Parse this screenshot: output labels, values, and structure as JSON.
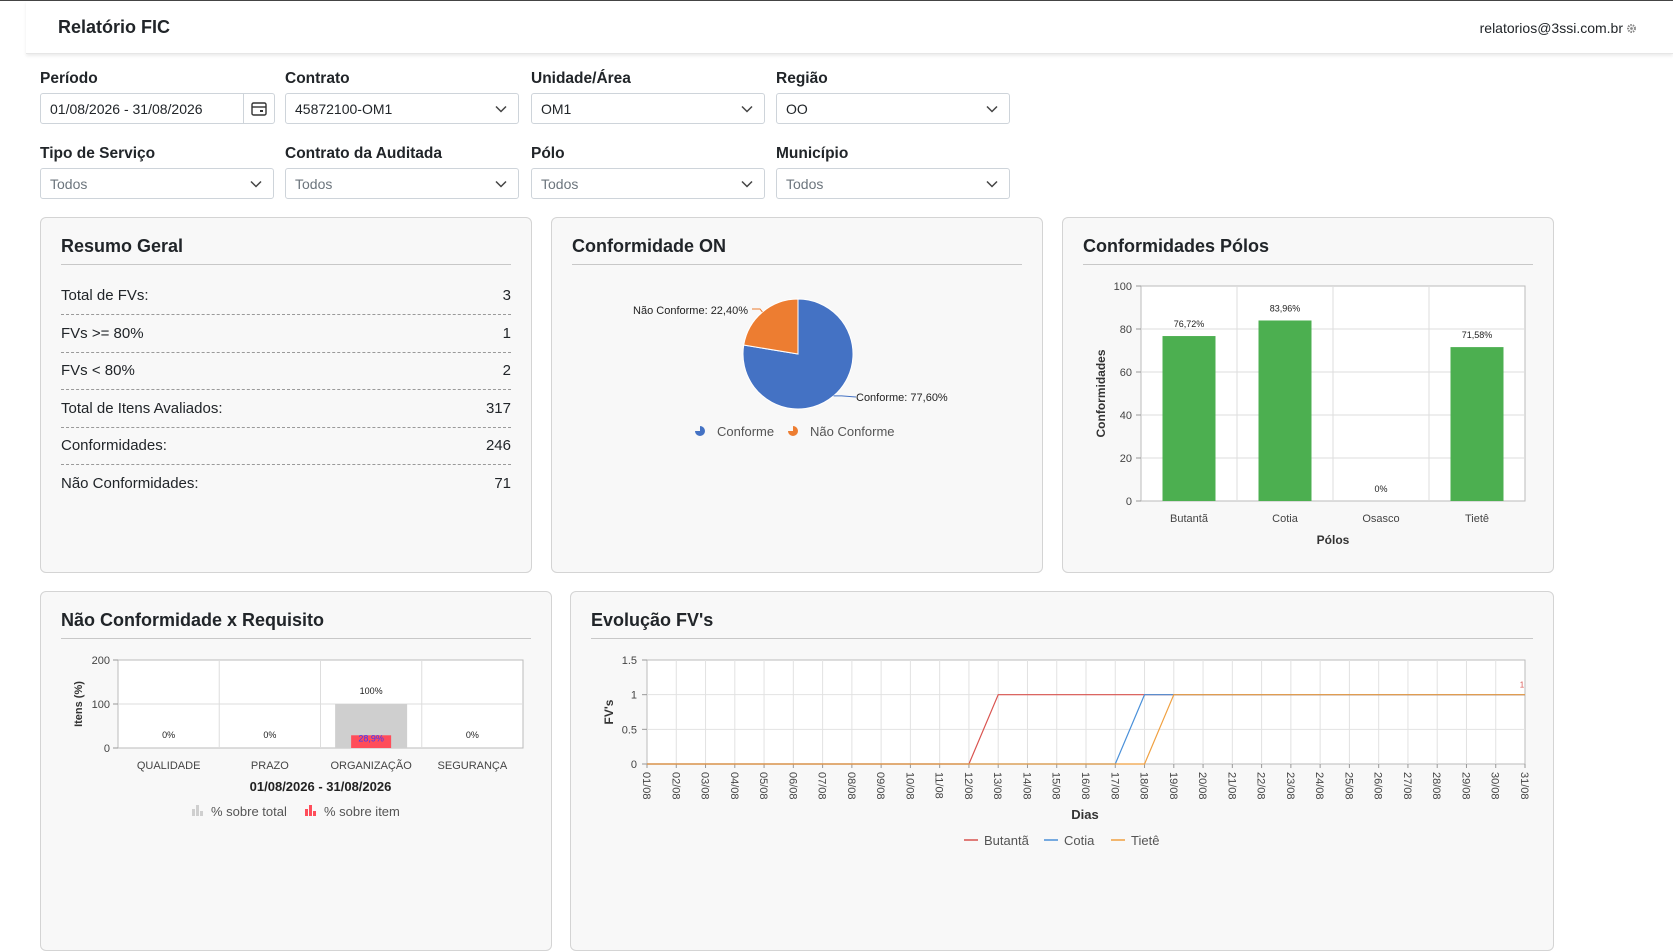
{
  "header": {
    "title": "Relatório FIC",
    "user_email": "relatorios@3ssi.com.br"
  },
  "filters": {
    "periodo": {
      "label": "Período",
      "value": "01/08/2026 - 31/08/2026"
    },
    "contrato": {
      "label": "Contrato",
      "value": "45872100-OM1"
    },
    "unidade": {
      "label": "Unidade/Área",
      "value": "OM1"
    },
    "regiao": {
      "label": "Região",
      "value": "OO"
    },
    "tipo_servico": {
      "label": "Tipo de Serviço",
      "value": "Todos"
    },
    "contrato_auditada": {
      "label": "Contrato da Auditada",
      "value": "Todos"
    },
    "polo": {
      "label": "Pólo",
      "value": "Todos"
    },
    "municipio": {
      "label": "Município",
      "value": "Todos"
    }
  },
  "resumo": {
    "title": "Resumo Geral",
    "rows": [
      {
        "label": "Total de FVs:",
        "value": "3"
      },
      {
        "label": "FVs >= 80%",
        "value": "1"
      },
      {
        "label": "FVs < 80%",
        "value": "2"
      },
      {
        "label": "Total de Itens Avaliados:",
        "value": "317"
      },
      {
        "label": "Conformidades:",
        "value": "246"
      },
      {
        "label": "Não Conformidades:",
        "value": "71"
      }
    ]
  },
  "colors": {
    "pie_conforme": "#4472c4",
    "pie_nao_conforme": "#ed7d31",
    "bar_green": "#4caf50",
    "bar_total": "#cfcfcf",
    "bar_item": "#ff4d5a",
    "line_butanta": "#d9534f",
    "line_cotia": "#4a90d9",
    "line_tiete": "#f0a040"
  },
  "chart_data": [
    {
      "id": "conformidade_on",
      "type": "pie",
      "title": "Conformidade ON",
      "slices": [
        {
          "name": "Conforme",
          "value": 77.6,
          "label": "Conforme: 77,60%"
        },
        {
          "name": "Não Conforme",
          "value": 22.4,
          "label": "Não Conforme: 22,40%"
        }
      ],
      "legend": "bottom"
    },
    {
      "id": "conformidades_polos",
      "type": "bar",
      "title": "Conformidades Pólos",
      "categories": [
        "Butantã",
        "Cotia",
        "Osasco",
        "Tietê"
      ],
      "values": [
        76.72,
        83.96,
        0,
        71.58
      ],
      "data_labels": [
        "76,72%",
        "83,96%",
        "0%",
        "71,58%"
      ],
      "xlabel": "Pólos",
      "ylabel": "Conformidades",
      "ylim": [
        0,
        100
      ],
      "yticks": [
        "0",
        "20",
        "40",
        "60",
        "80",
        "100"
      ],
      "grid": true
    },
    {
      "id": "nao_conformidade_requisito",
      "type": "bar",
      "title": "Não Conformidade x Requisito",
      "categories": [
        "QUALIDADE",
        "PRAZO",
        "ORGANIZAÇÃO",
        "SEGURANÇA"
      ],
      "series": [
        {
          "name": "% sobre total",
          "values": [
            0,
            0,
            100,
            0
          ],
          "data_labels": [
            "",
            "",
            "100%",
            ""
          ]
        },
        {
          "name": "% sobre item",
          "values": [
            0,
            0,
            28.9,
            0
          ],
          "data_labels": [
            "0%",
            "0%",
            "28,9%",
            "0%"
          ]
        }
      ],
      "xlabel": "01/08/2026 - 31/08/2026",
      "ylabel": "Itens (%)",
      "ylim": [
        0,
        200
      ],
      "yticks": [
        "0",
        "100",
        "200"
      ],
      "legend": "bottom",
      "grid": true
    },
    {
      "id": "evolucao_fvs",
      "type": "line",
      "title": "Evolução FV's",
      "x": [
        "01/08",
        "02/08",
        "03/08",
        "04/08",
        "05/08",
        "06/08",
        "07/08",
        "08/08",
        "09/08",
        "10/08",
        "11/08",
        "12/08",
        "13/08",
        "14/08",
        "15/08",
        "16/08",
        "17/08",
        "18/08",
        "19/08",
        "20/08",
        "21/08",
        "22/08",
        "23/08",
        "24/08",
        "25/08",
        "26/08",
        "27/08",
        "28/08",
        "29/08",
        "30/08",
        "31/08"
      ],
      "series": [
        {
          "name": "Butantã",
          "values": [
            0,
            0,
            0,
            0,
            0,
            0,
            0,
            0,
            0,
            0,
            0,
            0,
            1,
            1,
            1,
            1,
            1,
            1,
            1,
            1,
            1,
            1,
            1,
            1,
            1,
            1,
            1,
            1,
            1,
            1,
            1
          ]
        },
        {
          "name": "Cotia",
          "values": [
            0,
            0,
            0,
            0,
            0,
            0,
            0,
            0,
            0,
            0,
            0,
            0,
            0,
            0,
            0,
            0,
            0,
            1,
            1,
            1,
            1,
            1,
            1,
            1,
            1,
            1,
            1,
            1,
            1,
            1,
            1
          ]
        },
        {
          "name": "Tietê",
          "values": [
            0,
            0,
            0,
            0,
            0,
            0,
            0,
            0,
            0,
            0,
            0,
            0,
            0,
            0,
            0,
            0,
            0,
            0,
            1,
            1,
            1,
            1,
            1,
            1,
            1,
            1,
            1,
            1,
            1,
            1,
            1
          ]
        }
      ],
      "end_label": "1",
      "xlabel": "Dias",
      "ylabel": "FV's",
      "ylim": [
        0,
        1.5
      ],
      "yticks": [
        "0",
        "0.5",
        "1",
        "1.5"
      ],
      "legend": "bottom",
      "grid": true
    }
  ]
}
